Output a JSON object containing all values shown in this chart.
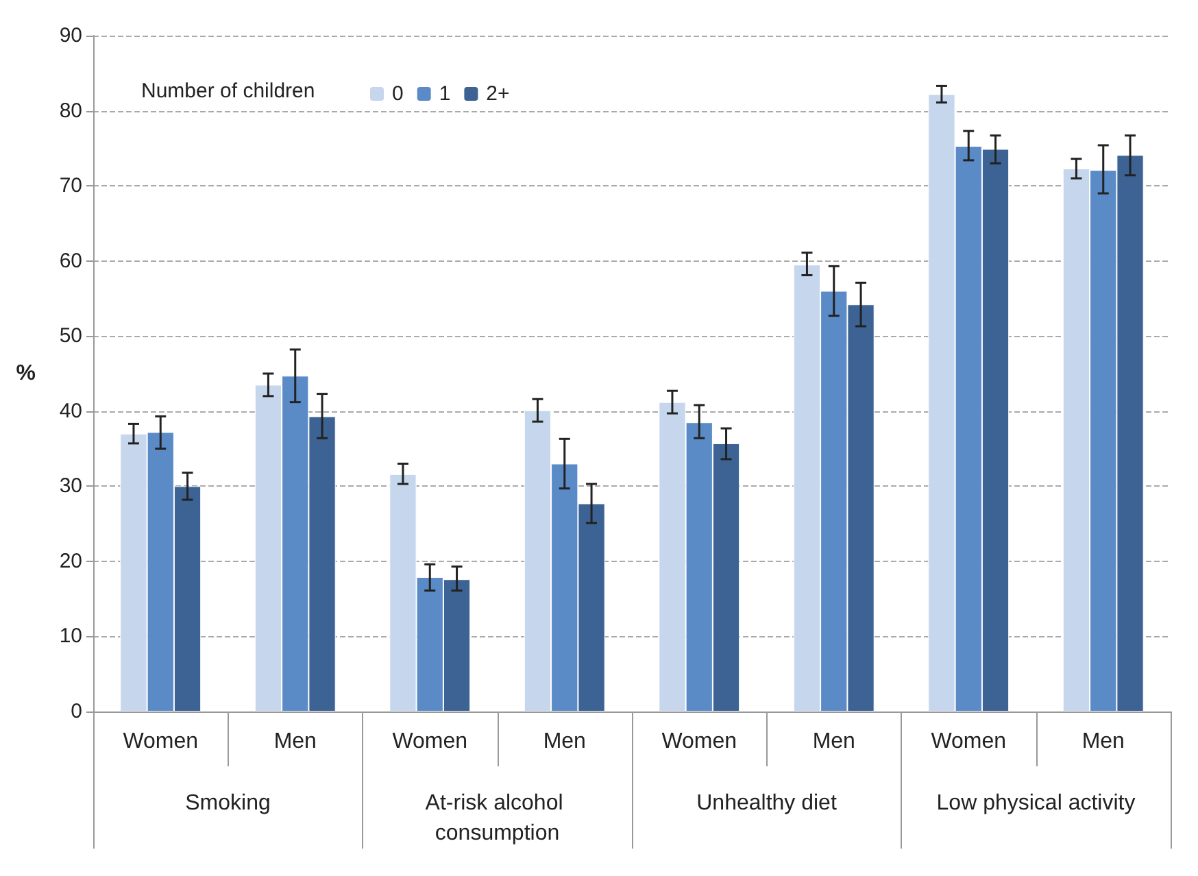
{
  "chart_data": {
    "type": "bar",
    "ylabel": "%",
    "legend_title": "Number of children",
    "categories": [
      "Women",
      "Men",
      "Women",
      "Men",
      "Women",
      "Men",
      "Women",
      "Men"
    ],
    "annotations": [
      "Smoking",
      "At-risk alcohol consumption",
      "Unhealthy diet",
      "Low physical activity"
    ],
    "series": [
      {
        "name": "0",
        "color": "#c6d6ec",
        "values": [
          37,
          43.5,
          31.6,
          40.1,
          41.2,
          59.5,
          82.2,
          72.3
        ],
        "errors": [
          [
            35.7,
            38.3
          ],
          [
            42,
            45
          ],
          [
            30.3,
            33
          ],
          [
            38.6,
            41.6
          ],
          [
            39.7,
            42.7
          ],
          [
            58.1,
            61.1
          ],
          [
            81.1,
            83.3
          ],
          [
            71,
            73.6
          ]
        ]
      },
      {
        "name": "1",
        "color": "#5b8bc6",
        "values": [
          37.2,
          44.7,
          17.9,
          33,
          38.5,
          56,
          75.3,
          72.1
        ],
        "errors": [
          [
            35,
            39.3
          ],
          [
            41.2,
            48.2
          ],
          [
            16.1,
            19.6
          ],
          [
            29.7,
            36.3
          ],
          [
            36.4,
            40.8
          ],
          [
            52.7,
            59.3
          ],
          [
            73.4,
            77.3
          ],
          [
            69,
            75.4
          ]
        ]
      },
      {
        "name": "2+",
        "color": "#3c6394",
        "values": [
          30,
          39.3,
          17.6,
          27.7,
          35.7,
          54.2,
          74.9,
          74.1
        ],
        "errors": [
          [
            28.2,
            31.8
          ],
          [
            36.4,
            42.3
          ],
          [
            16.1,
            19.3
          ],
          [
            25.1,
            30.3
          ],
          [
            33.6,
            37.7
          ],
          [
            51.3,
            57.1
          ],
          [
            73,
            76.7
          ],
          [
            71.4,
            76.7
          ]
        ]
      }
    ],
    "ylim": [
      0,
      90
    ],
    "yticks": [
      0,
      10,
      20,
      30,
      40,
      50,
      60,
      70,
      80,
      90
    ],
    "grid": "y",
    "legend": "top left"
  }
}
